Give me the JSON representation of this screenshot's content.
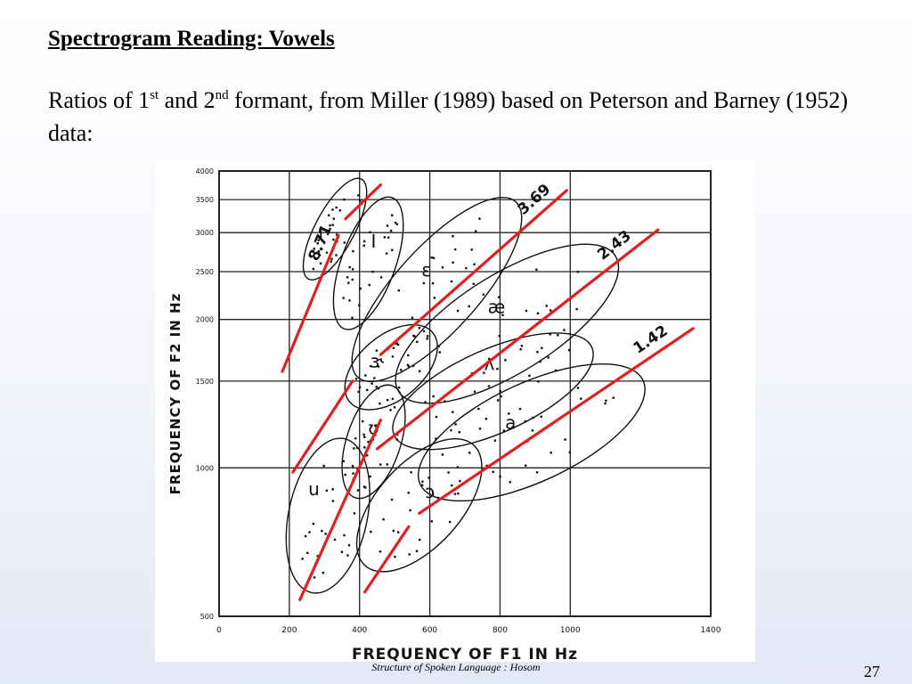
{
  "slide": {
    "title": "Spectrogram Reading: Vowels",
    "body": {
      "p1": "Ratios of 1",
      "sup1": "st",
      "p2": " and 2",
      "sup2": "nd",
      "p3": " formant, from Miller (1989) based on Peterson and Barney (1952) data:"
    },
    "footer": "Structure of Spoken Language : Hosom",
    "page_number": "27"
  },
  "colors": {
    "ratio_line": "#e02020",
    "ink": "#111111",
    "grid": "#222222"
  },
  "chart_data": {
    "type": "scatter",
    "title": "",
    "xlabel": "FREQUENCY OF F1 IN Hz",
    "ylabel": "FREQUENCY OF F2 IN Hz",
    "xscale": "linear",
    "yscale": "log",
    "xlim": [
      0,
      1400
    ],
    "ylim": [
      500,
      4000
    ],
    "x_ticks": [
      0,
      200,
      400,
      600,
      800,
      1000,
      1400
    ],
    "x_tick_labels": [
      "0",
      "200",
      "400",
      "600",
      "800",
      "1000",
      "1400"
    ],
    "y_ticks": [
      500,
      1000,
      1500,
      2000,
      2500,
      3000,
      3500,
      4000
    ],
    "y_tick_labels": [
      "500",
      "1000",
      "1500",
      "2000",
      "2500",
      "3000",
      "3500",
      "4000"
    ],
    "grid": true,
    "vowel_labels": [
      {
        "label": "i",
        "x": 290,
        "y": 2900
      },
      {
        "label": "I",
        "x": 440,
        "y": 2800
      },
      {
        "label": "ε",
        "x": 590,
        "y": 2450
      },
      {
        "label": "æ",
        "x": 790,
        "y": 2060
      },
      {
        "label": "ʌ",
        "x": 770,
        "y": 1580
      },
      {
        "label": "a",
        "x": 830,
        "y": 1200
      },
      {
        "label": "ɔ",
        "x": 600,
        "y": 870
      },
      {
        "label": "ʊ",
        "x": 440,
        "y": 1170
      },
      {
        "label": "u",
        "x": 270,
        "y": 880
      },
      {
        "label": "ɝ",
        "x": 450,
        "y": 1600
      }
    ],
    "ratio_lines": [
      {
        "label": "8.71",
        "points": [
          [
            180,
            1568
          ],
          [
            340,
            2961
          ]
        ]
      },
      {
        "label": "3.69",
        "points": [
          [
            460,
            1697
          ],
          [
            990,
            3653
          ]
        ]
      },
      {
        "label": "2.43",
        "points": [
          [
            450,
            1093
          ],
          [
            1250,
            3038
          ]
        ]
      },
      {
        "label": "1.42",
        "points": [
          [
            570,
            809
          ],
          [
            1350,
            1917
          ]
        ]
      },
      {
        "label": "",
        "points": [
          [
            360,
            3200
          ],
          [
            460,
            3750
          ]
        ]
      },
      {
        "label": "",
        "points": [
          [
            210,
            980
          ],
          [
            380,
            1500
          ]
        ]
      },
      {
        "label": "",
        "points": [
          [
            230,
            540
          ],
          [
            460,
            1250
          ]
        ]
      },
      {
        "label": "",
        "points": [
          [
            415,
            560
          ],
          [
            540,
            760
          ]
        ]
      }
    ],
    "ellipses": [
      {
        "label": "i",
        "cx": 330,
        "cy": 3050,
        "angle": -62,
        "rx": 0.115,
        "ry": 0.04
      },
      {
        "label": "I",
        "cx": 425,
        "cy": 2600,
        "angle": -70,
        "rx": 0.142,
        "ry": 0.055
      },
      {
        "label": "ε",
        "cx": 620,
        "cy": 2300,
        "angle": -48,
        "rx": 0.24,
        "ry": 0.085
      },
      {
        "label": "æ",
        "cx": 820,
        "cy": 1960,
        "angle": -32,
        "rx": 0.26,
        "ry": 0.1
      },
      {
        "label": "ʌ",
        "cx": 780,
        "cy": 1430,
        "angle": -24,
        "rx": 0.22,
        "ry": 0.085
      },
      {
        "label": "a",
        "cx": 890,
        "cy": 1180,
        "angle": -25,
        "rx": 0.25,
        "ry": 0.1
      },
      {
        "label": "ɔ",
        "cx": 570,
        "cy": 840,
        "angle": -48,
        "rx": 0.165,
        "ry": 0.085
      },
      {
        "label": "ʊ",
        "cx": 440,
        "cy": 1130,
        "angle": -72,
        "rx": 0.12,
        "ry": 0.055
      },
      {
        "label": "u",
        "cx": 310,
        "cy": 800,
        "angle": -78,
        "rx": 0.16,
        "ry": 0.08
      },
      {
        "label": "ɝ",
        "cx": 490,
        "cy": 1600,
        "angle": -40,
        "rx": 0.11,
        "ry": 0.065
      }
    ]
  }
}
